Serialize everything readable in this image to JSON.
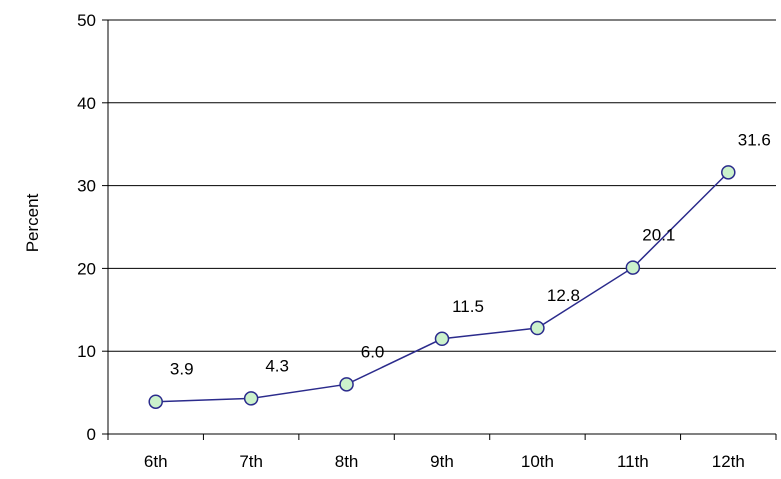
{
  "chart_data": {
    "type": "line",
    "title": "",
    "xlabel": "",
    "ylabel": "Percent",
    "categories": [
      "6th",
      "7th",
      "8th",
      "9th",
      "10th",
      "11th",
      "12th"
    ],
    "series": [
      {
        "values": [
          3.9,
          4.3,
          6.0,
          11.5,
          12.8,
          20.1,
          31.6
        ],
        "data_labels": [
          "3.9",
          "4.3",
          "6.0",
          "11.5",
          "12.8",
          "20.1",
          "31.6"
        ]
      }
    ],
    "ylim": [
      0,
      50
    ],
    "yticks": [
      0,
      10,
      20,
      30,
      40,
      50
    ],
    "grid": true,
    "legend": "none",
    "colors": {
      "line": "#2B2B8C",
      "marker_fill": "#CCF2CC",
      "marker_stroke": "#2B2B8C",
      "grid": "#000000",
      "axis": "#000000"
    }
  }
}
